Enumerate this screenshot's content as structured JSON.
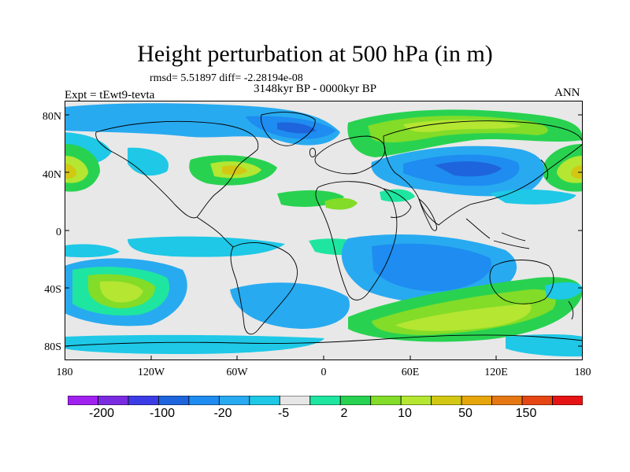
{
  "title": "Height perturbation at 500 hPa (in m)",
  "stats": "rmsd= 5.51897 diff= -2.28194e-08",
  "period": "3148kyr BP - 0000kyr BP",
  "experiment": "Expt = tEwt9-tevta",
  "season": "ANN",
  "map": {
    "lat_labels": [
      "80N",
      "40N",
      "0",
      "40S",
      "80S"
    ],
    "lon_labels": [
      "180",
      "120W",
      "60W",
      "0",
      "60E",
      "120E",
      "180"
    ],
    "background_color": "#e8e8e8"
  },
  "colorbar": {
    "colors": [
      "#a020f0",
      "#7a2be0",
      "#3c3ce6",
      "#1e64dc",
      "#1e8cf0",
      "#28aaf0",
      "#1ec8e6",
      "#e6e6e6",
      "#1ee6a0",
      "#28d250",
      "#82dc28",
      "#b4e632",
      "#d2c814",
      "#e6a50a",
      "#e67814",
      "#e64614",
      "#e61414"
    ],
    "labels": [
      "-200",
      "-100",
      "-20",
      "-5",
      "2",
      "10",
      "50",
      "150"
    ]
  }
}
